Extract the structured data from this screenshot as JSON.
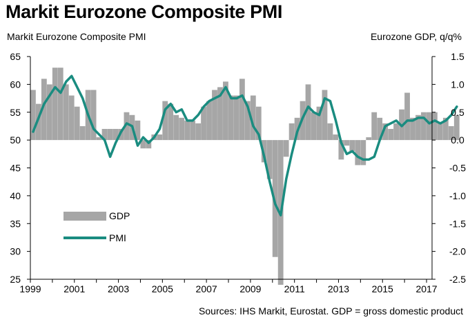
{
  "title": "Markit Eurozone Composite PMI",
  "chart_data": {
    "type": "bar+line",
    "title": "Markit Eurozone Composite PMI",
    "ylabel_left": "Markit Eurozone Composite PMI",
    "ylabel_right": "Eurozone GDP, q/q%",
    "source": "Sources: IHS Markit, Eurostat. GDP = gross domestic product",
    "ylim_left": [
      25,
      65
    ],
    "ylim_right": [
      -2.5,
      1.5
    ],
    "yticks_left": [
      "65",
      "60",
      "55",
      "50",
      "45",
      "40",
      "35",
      "30",
      "25"
    ],
    "yticks_right": [
      "1.5",
      "1.0",
      "0.5",
      "0.0",
      "-0.5",
      "-1.0",
      "-1.5",
      "-2.0",
      "-2.5"
    ],
    "xticks": [
      "1999",
      "2001",
      "2003",
      "2005",
      "2007",
      "2009",
      "2011",
      "2013",
      "2015",
      "2017"
    ],
    "xlim": [
      1999.0,
      2017.25
    ],
    "legend": [
      {
        "name": "GDP",
        "type": "bar",
        "color": "#a6a6a6"
      },
      {
        "name": "PMI",
        "type": "line",
        "color": "#1a8c80"
      }
    ],
    "gdp": {
      "name": "GDP",
      "axis": "right",
      "start": 1999.0,
      "step": 0.25,
      "values": [
        0.9,
        0.65,
        1.1,
        1.0,
        1.3,
        1.3,
        1.0,
        0.8,
        0.6,
        0.25,
        0.9,
        0.9,
        0.05,
        0.2,
        0.2,
        0.2,
        0.2,
        0.5,
        0.45,
        0.35,
        -0.15,
        -0.15,
        0.1,
        0.1,
        0.7,
        0.65,
        0.45,
        0.4,
        0.35,
        0.35,
        0.3,
        0.6,
        0.7,
        0.9,
        0.95,
        1.05,
        0.8,
        0.8,
        1.1,
        0.7,
        0.8,
        0.6,
        -0.4,
        -0.7,
        -2.1,
        -2.6,
        -0.3,
        0.3,
        0.4,
        0.7,
        1.0,
        0.5,
        0.6,
        0.9,
        0.3,
        0.1,
        -0.35,
        -0.1,
        -0.2,
        -0.45,
        -0.45,
        0.05,
        0.5,
        0.4,
        0.3,
        0.2,
        0.3,
        0.55,
        0.85,
        0.4,
        0.45,
        0.5,
        0.5,
        0.5,
        0.3,
        0.4,
        0.25,
        0.45
      ]
    },
    "pmi": {
      "name": "PMI",
      "axis": "left",
      "start": 1999.0,
      "step": 0.25,
      "values": [
        51.5,
        54.0,
        56.5,
        58.0,
        59.5,
        58.5,
        60.5,
        61.5,
        59.5,
        57.5,
        54.5,
        52.0,
        51.0,
        50.0,
        47.0,
        49.5,
        51.5,
        53.0,
        52.5,
        49.0,
        50.5,
        49.5,
        50.5,
        52.0,
        55.5,
        56.5,
        55.0,
        55.5,
        53.5,
        53.5,
        54.5,
        56.0,
        57.0,
        57.5,
        58.0,
        59.5,
        57.5,
        57.5,
        58.0,
        56.0,
        52.5,
        51.0,
        47.0,
        42.5,
        38.5,
        36.5,
        43.0,
        47.5,
        51.5,
        54.0,
        56.0,
        55.0,
        54.5,
        57.5,
        57.0,
        53.5,
        49.5,
        47.5,
        48.0,
        47.0,
        46.5,
        46.5,
        47.0,
        50.0,
        52.5,
        53.0,
        53.5,
        52.5,
        53.5,
        53.5,
        54.0,
        54.0,
        53.0,
        53.5,
        53.0,
        53.5,
        54.5,
        56.0
      ]
    }
  }
}
